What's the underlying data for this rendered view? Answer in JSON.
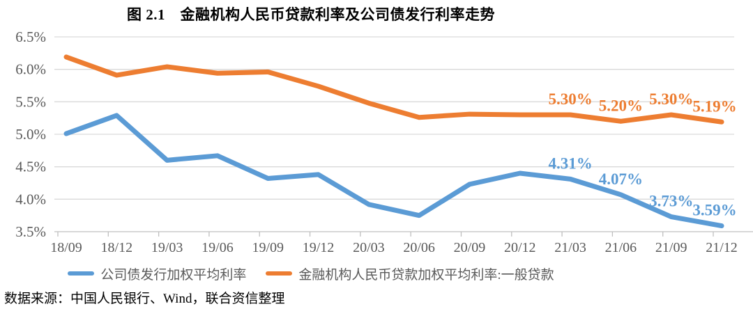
{
  "title": "图 2.1　金融机构人民币贷款利率及公司债发行利率走势",
  "source_note": "数据来源：中国人民银行、Wind，联合资信整理",
  "colors": {
    "corporate_bond_series": "#5B9BD5",
    "loan_rate_series": "#ED7D31",
    "axis_text": "#595959",
    "gridline": "#D9D9D9",
    "axis_line": "#BFBFBF",
    "title_text": "#000000"
  },
  "chart_data": {
    "type": "line",
    "title": "图 2.1　金融机构人民币贷款利率及公司债发行利率走势",
    "categories": [
      "18/09",
      "18/12",
      "19/03",
      "19/06",
      "19/09",
      "19/12",
      "20/03",
      "20/06",
      "20/09",
      "20/12",
      "21/03",
      "21/06",
      "21/09",
      "21/12"
    ],
    "series": [
      {
        "name": "公司债发行加权平均利率",
        "color": "#5B9BD5",
        "values": [
          5.01,
          5.29,
          4.6,
          4.67,
          4.32,
          4.38,
          3.92,
          3.75,
          4.23,
          4.4,
          4.31,
          4.07,
          3.73,
          3.59
        ],
        "point_labels": {
          "10": "4.31%",
          "11": "4.07%",
          "12": "3.73%",
          "13": "3.59%"
        }
      },
      {
        "name": "金融机构人民币贷款加权平均利率:一般贷款",
        "color": "#ED7D31",
        "values": [
          6.19,
          5.91,
          6.04,
          5.94,
          5.96,
          5.74,
          5.48,
          5.26,
          5.31,
          5.3,
          5.3,
          5.2,
          5.3,
          5.19
        ],
        "point_labels": {
          "10": "5.30%",
          "11": "5.20%",
          "12": "5.30%",
          "13": "5.19%"
        }
      }
    ],
    "ylim": [
      3.5,
      6.5
    ],
    "yticks": [
      {
        "value": 6.5,
        "label": "6.5%"
      },
      {
        "value": 6.0,
        "label": "6.0%"
      },
      {
        "value": 5.5,
        "label": "5.5%"
      },
      {
        "value": 5.0,
        "label": "5.0%"
      },
      {
        "value": 4.5,
        "label": "4.5%"
      },
      {
        "value": 4.0,
        "label": "4.0%"
      },
      {
        "value": 3.5,
        "label": "3.5%"
      }
    ],
    "grid": true,
    "legend_position": "bottom",
    "xlabel": "",
    "ylabel": ""
  }
}
